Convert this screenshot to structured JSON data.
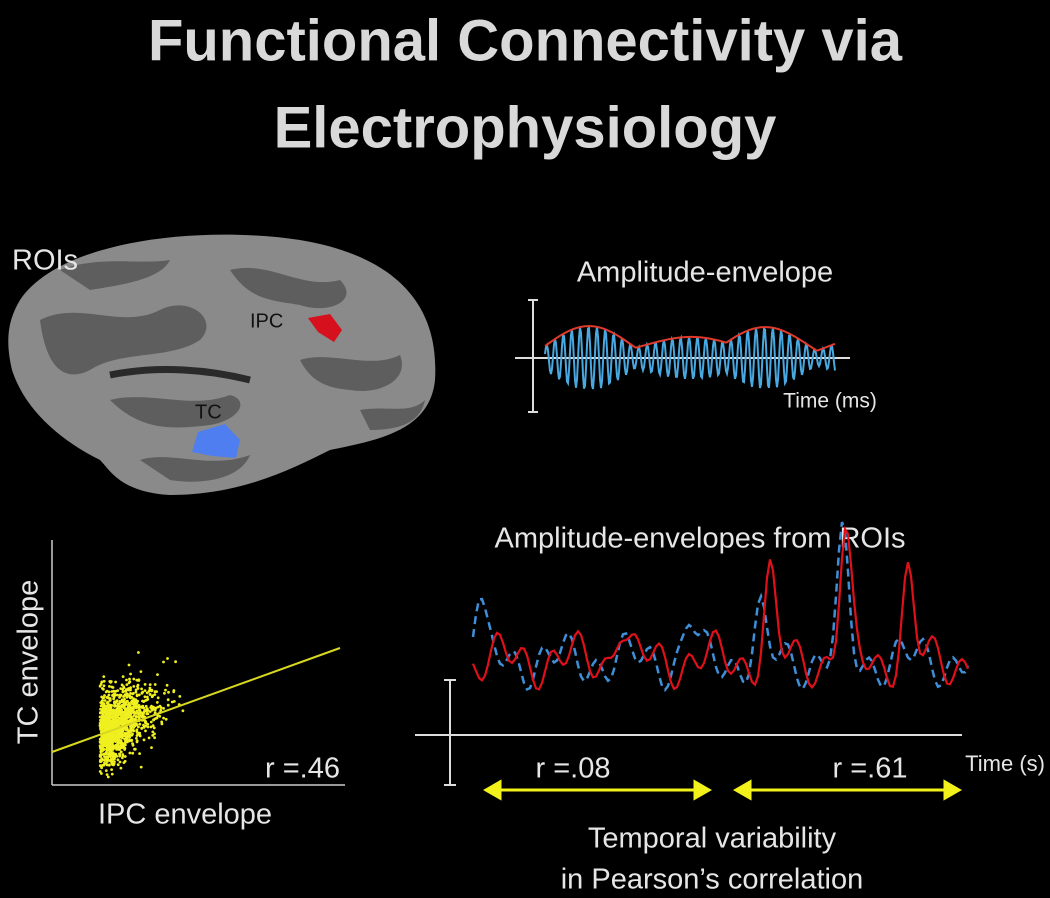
{
  "title": [
    "Functional Connectivity via",
    "Electrophysiology"
  ],
  "rois": {
    "label": "ROIs",
    "regions": [
      "IPC",
      "TC"
    ]
  },
  "envelope": {
    "title": "Amplitude-envelope",
    "x_label": "Time (ms)"
  },
  "scatter": {
    "y_label": "TC envelope",
    "x_label": "IPC envelope",
    "correlation": "r =.46"
  },
  "roi_envelopes": {
    "title": "Amplitude-envelopes from ROIs",
    "x_label": "Time (s)",
    "windows": [
      "r =.08",
      "r =.61"
    ],
    "caption": [
      "Temporal variability",
      "in Pearson’s correlation"
    ]
  }
}
